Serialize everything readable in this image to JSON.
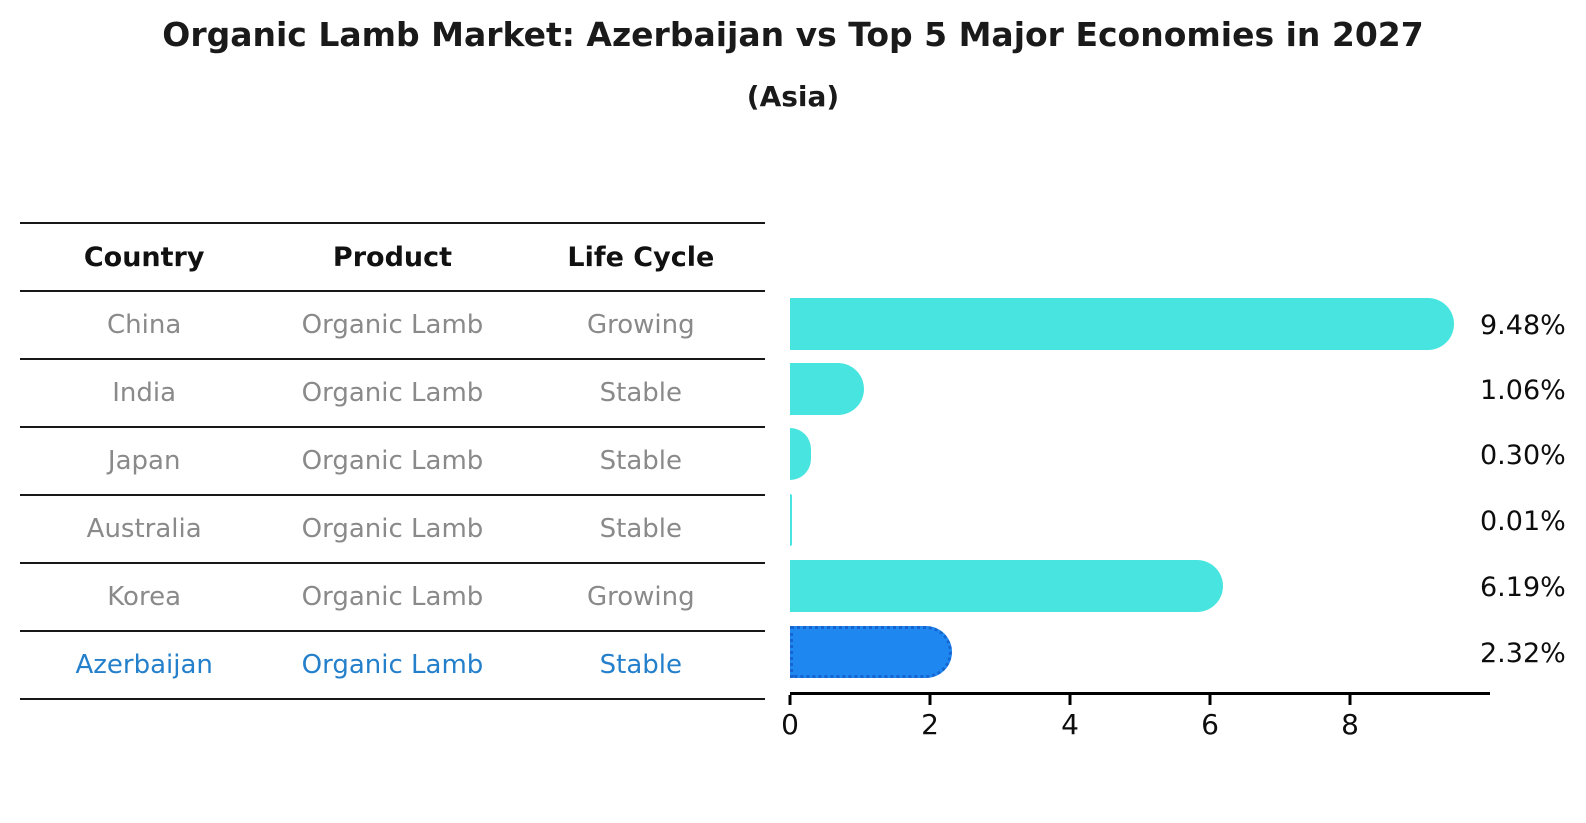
{
  "title": "Organic Lamb Market: Azerbaijan vs Top 5 Major Economies in 2027",
  "subtitle": "(Asia)",
  "table": {
    "headers": [
      "Country",
      "Product",
      "Life Cycle"
    ],
    "rows": [
      {
        "country": "China",
        "product": "Organic Lamb",
        "life_cycle": "Growing",
        "highlight": false
      },
      {
        "country": "India",
        "product": "Organic Lamb",
        "life_cycle": "Stable",
        "highlight": false
      },
      {
        "country": "Japan",
        "product": "Organic Lamb",
        "life_cycle": "Stable",
        "highlight": false
      },
      {
        "country": "Australia",
        "product": "Organic Lamb",
        "life_cycle": "Stable",
        "highlight": false
      },
      {
        "country": "Korea",
        "product": "Organic Lamb",
        "life_cycle": "Growing",
        "highlight": false
      },
      {
        "country": "Azerbaijan",
        "product": "Organic Lamb",
        "life_cycle": "Stable",
        "highlight": true
      }
    ]
  },
  "chart_data": {
    "type": "bar",
    "orientation": "horizontal",
    "title": "Organic Lamb Market: Azerbaijan vs Top 5 Major Economies in 2027 (Asia)",
    "categories": [
      "China",
      "India",
      "Japan",
      "Australia",
      "Korea",
      "Azerbaijan"
    ],
    "values": [
      9.48,
      1.06,
      0.3,
      0.01,
      6.19,
      2.32
    ],
    "value_labels": [
      "9.48%",
      "1.06%",
      "0.30%",
      "0.01%",
      "6.19%",
      "2.32%"
    ],
    "xlim": [
      0,
      10
    ],
    "xticks": [
      0,
      2,
      4,
      6,
      8
    ],
    "xtick_labels": [
      "0",
      "2",
      "4",
      "6",
      "8"
    ],
    "grid": false,
    "legend": false,
    "bar_color": "#48e5e0",
    "highlight_bar_color": "#1e87f0",
    "highlight_border_color": "#1564d0",
    "highlight_index": 5
  },
  "colors": {
    "header_text": "#111111",
    "row_text": "#8a8a8a",
    "highlight_text": "#2580cb",
    "axis": "#000000"
  }
}
